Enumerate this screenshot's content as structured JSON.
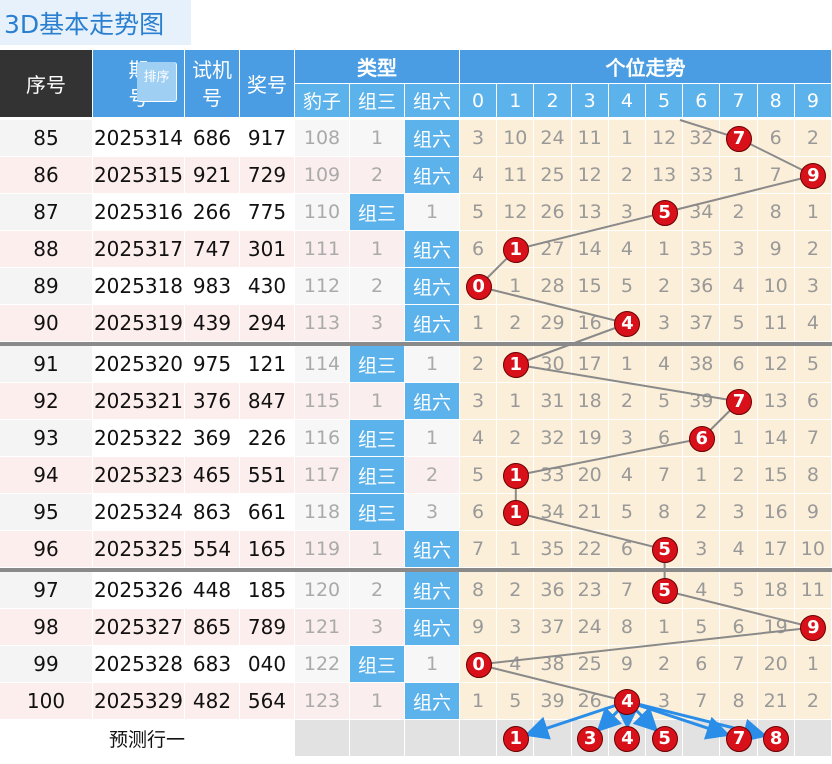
{
  "header": {
    "title": "3D基本走势图",
    "no": "序号",
    "issue": "期号",
    "sort": "排序",
    "test": "试机号",
    "prize": "奖号",
    "type": "类型",
    "type_sub": [
      "豹子",
      "组三",
      "组六"
    ],
    "trend": "个位走势",
    "digits": [
      0,
      1,
      2,
      3,
      4,
      5,
      6,
      7,
      8,
      9
    ]
  },
  "rows": [
    {
      "no": 85,
      "issue": "2025314",
      "test": "686",
      "prize": "917",
      "types": [
        108,
        1,
        "组六"
      ],
      "trend": [
        3,
        10,
        24,
        11,
        1,
        12,
        32,
        7,
        6,
        2
      ]
    },
    {
      "no": 86,
      "issue": "2025315",
      "test": "921",
      "prize": "729",
      "types": [
        109,
        2,
        "组六"
      ],
      "trend": [
        4,
        11,
        25,
        12,
        2,
        13,
        33,
        1,
        7,
        9
      ]
    },
    {
      "no": 87,
      "issue": "2025316",
      "test": "266",
      "prize": "775",
      "types": [
        110,
        "组三",
        1
      ],
      "trend": [
        5,
        12,
        26,
        13,
        3,
        5,
        34,
        2,
        8,
        1
      ]
    },
    {
      "no": 88,
      "issue": "2025317",
      "test": "747",
      "prize": "301",
      "types": [
        111,
        1,
        "组六"
      ],
      "trend": [
        6,
        1,
        27,
        14,
        4,
        1,
        35,
        3,
        9,
        2
      ]
    },
    {
      "no": 89,
      "issue": "2025318",
      "test": "983",
      "prize": "430",
      "types": [
        112,
        2,
        "组六"
      ],
      "trend": [
        0,
        1,
        28,
        15,
        5,
        2,
        36,
        4,
        10,
        3
      ]
    },
    {
      "no": 90,
      "issue": "2025319",
      "test": "439",
      "prize": "294",
      "types": [
        113,
        3,
        "组六"
      ],
      "trend": [
        1,
        2,
        29,
        16,
        4,
        3,
        37,
        5,
        11,
        4
      ]
    },
    {
      "no": 91,
      "issue": "2025320",
      "test": "975",
      "prize": "121",
      "types": [
        114,
        "组三",
        1
      ],
      "trend": [
        2,
        1,
        30,
        17,
        1,
        4,
        38,
        6,
        12,
        5
      ]
    },
    {
      "no": 92,
      "issue": "2025321",
      "test": "376",
      "prize": "847",
      "types": [
        115,
        1,
        "组六"
      ],
      "trend": [
        3,
        1,
        31,
        18,
        2,
        5,
        39,
        7,
        13,
        6
      ]
    },
    {
      "no": 93,
      "issue": "2025322",
      "test": "369",
      "prize": "226",
      "types": [
        116,
        "组三",
        1
      ],
      "trend": [
        4,
        2,
        32,
        19,
        3,
        6,
        6,
        1,
        14,
        7
      ]
    },
    {
      "no": 94,
      "issue": "2025323",
      "test": "465",
      "prize": "551",
      "types": [
        117,
        "组三",
        2
      ],
      "trend": [
        5,
        1,
        33,
        20,
        4,
        7,
        1,
        2,
        15,
        8
      ]
    },
    {
      "no": 95,
      "issue": "2025324",
      "test": "863",
      "prize": "661",
      "types": [
        118,
        "组三",
        3
      ],
      "trend": [
        6,
        1,
        34,
        21,
        5,
        8,
        2,
        3,
        16,
        9
      ]
    },
    {
      "no": 96,
      "issue": "2025325",
      "test": "554",
      "prize": "165",
      "types": [
        119,
        1,
        "组六"
      ],
      "trend": [
        7,
        1,
        35,
        22,
        6,
        5,
        3,
        4,
        17,
        10
      ]
    },
    {
      "no": 97,
      "issue": "2025326",
      "test": "448",
      "prize": "185",
      "types": [
        120,
        2,
        "组六"
      ],
      "trend": [
        8,
        2,
        36,
        23,
        7,
        5,
        4,
        5,
        18,
        11
      ]
    },
    {
      "no": 98,
      "issue": "2025327",
      "test": "865",
      "prize": "789",
      "types": [
        121,
        3,
        "组六"
      ],
      "trend": [
        9,
        3,
        37,
        24,
        8,
        1,
        5,
        6,
        19,
        9
      ]
    },
    {
      "no": 99,
      "issue": "2025328",
      "test": "683",
      "prize": "040",
      "types": [
        122,
        "组三",
        1
      ],
      "trend": [
        0,
        4,
        38,
        25,
        9,
        2,
        6,
        7,
        20,
        1
      ]
    },
    {
      "no": 100,
      "issue": "2025329",
      "test": "482",
      "prize": "564",
      "types": [
        123,
        1,
        "组六"
      ],
      "trend": [
        1,
        5,
        39,
        26,
        4,
        3,
        7,
        8,
        21,
        2
      ]
    }
  ],
  "prediction": {
    "label": "预测行一",
    "digits": [
      1,
      3,
      4,
      5,
      7,
      8
    ]
  }
}
